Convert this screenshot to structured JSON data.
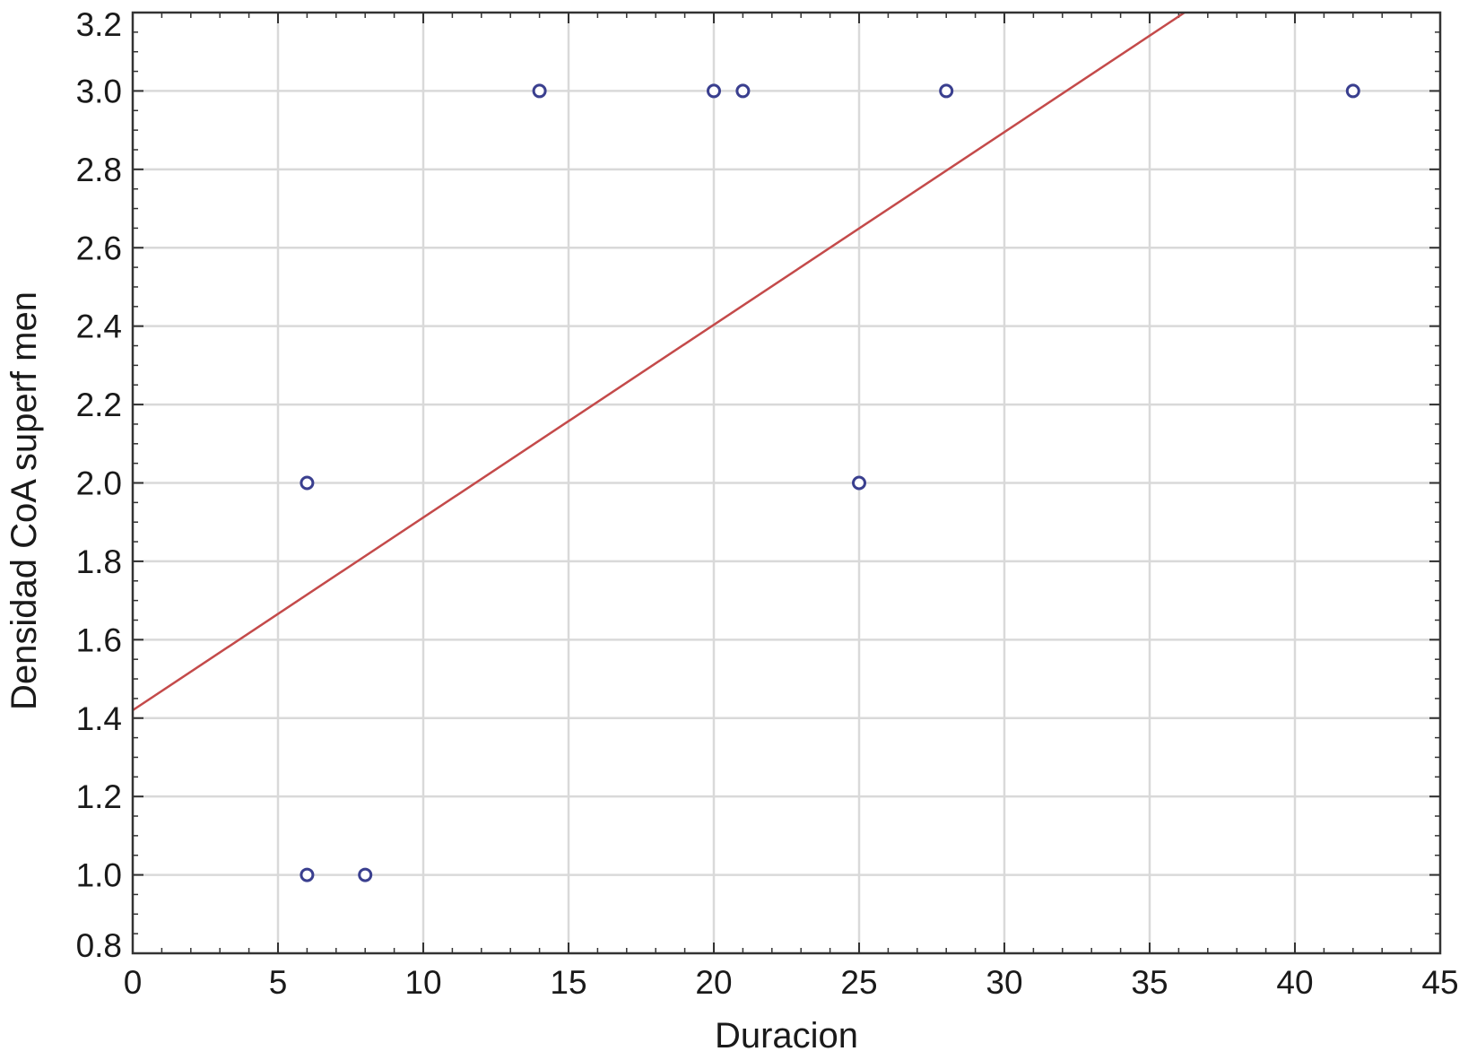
{
  "chart_data": {
    "type": "scatter",
    "xlabel": "Duracion",
    "ylabel": "Densidad CoA superf men",
    "xlim": [
      0,
      45
    ],
    "ylim": [
      0.8,
      3.2
    ],
    "x_ticks": [
      0,
      5,
      10,
      15,
      20,
      25,
      30,
      35,
      40,
      45
    ],
    "y_ticks": [
      0.8,
      1.0,
      1.2,
      1.4,
      1.6,
      1.8,
      2.0,
      2.2,
      2.4,
      2.6,
      2.8,
      3.0,
      3.2
    ],
    "x_tick_labels": [
      "0",
      "5",
      "10",
      "15",
      "20",
      "25",
      "30",
      "35",
      "40",
      "45"
    ],
    "y_tick_labels": [
      "0.8",
      "1.0",
      "1.2",
      "1.4",
      "1.6",
      "1.8",
      "2.0",
      "2.2",
      "2.4",
      "2.6",
      "2.8",
      "3.0",
      "3.2"
    ],
    "grid": true,
    "series": [
      {
        "type": "scatter",
        "x": [
          6,
          8,
          6,
          14,
          20,
          21,
          25,
          28,
          42
        ],
        "y": [
          1.0,
          1.0,
          2.0,
          3.0,
          3.0,
          3.0,
          2.0,
          3.0,
          3.0
        ]
      },
      {
        "type": "line",
        "x": [
          0,
          36.2
        ],
        "y": [
          1.42,
          3.2
        ]
      }
    ],
    "colors": {
      "points": "#3a3f8f",
      "fit_line": "#c44a4a",
      "grid": "#d9d9d9",
      "axes": "#333333"
    }
  }
}
